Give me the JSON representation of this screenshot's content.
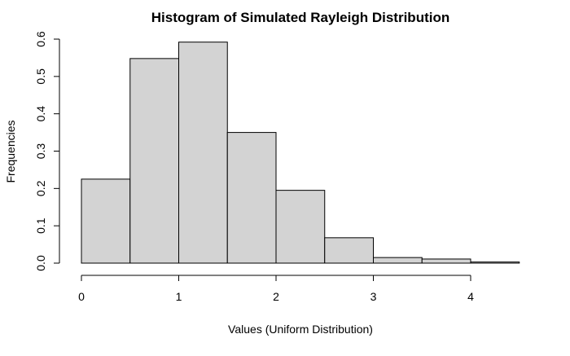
{
  "chart_data": {
    "type": "bar",
    "subtype": "histogram",
    "title": "Histogram of Simulated Rayleigh Distribution",
    "xlabel": "Values (Uniform Distribution)",
    "ylabel": "Frequencies",
    "bins": [
      {
        "start": 0.0,
        "end": 0.5,
        "value": 0.225
      },
      {
        "start": 0.5,
        "end": 1.0,
        "value": 0.548
      },
      {
        "start": 1.0,
        "end": 1.5,
        "value": 0.592
      },
      {
        "start": 1.5,
        "end": 2.0,
        "value": 0.35
      },
      {
        "start": 2.0,
        "end": 2.5,
        "value": 0.195
      },
      {
        "start": 2.5,
        "end": 3.0,
        "value": 0.068
      },
      {
        "start": 3.0,
        "end": 3.5,
        "value": 0.015
      },
      {
        "start": 3.5,
        "end": 4.0,
        "value": 0.011
      },
      {
        "start": 4.0,
        "end": 4.5,
        "value": 0.003
      }
    ],
    "xlim": [
      0,
      4.5
    ],
    "ylim": [
      0,
      0.6
    ],
    "xticks": [
      "0",
      "1",
      "2",
      "3",
      "4"
    ],
    "yticks": [
      "0.0",
      "0.1",
      "0.2",
      "0.3",
      "0.4",
      "0.5",
      "0.6"
    ],
    "grid": false,
    "bar_fill": "#d3d3d3",
    "bar_stroke": "#000000"
  }
}
